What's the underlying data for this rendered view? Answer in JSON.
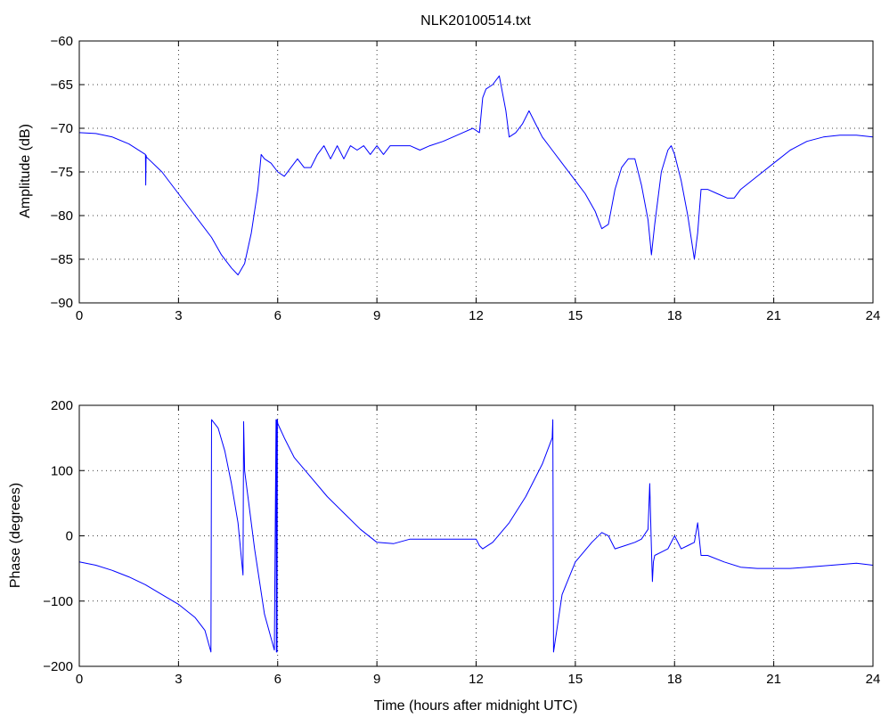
{
  "chart_data": [
    {
      "type": "line",
      "title": "NLK20100514.txt",
      "xlabel": "",
      "ylabel": "Amplitude (dB)",
      "xlim": [
        0,
        24
      ],
      "ylim": [
        -90,
        -60
      ],
      "xticks": [
        "0",
        "3",
        "6",
        "9",
        "12",
        "15",
        "18",
        "21",
        "24"
      ],
      "yticks": [
        "-90",
        "-85",
        "-80",
        "-75",
        "-70",
        "-65",
        "-60"
      ],
      "grid": true,
      "color": "#0000ff",
      "series": [
        {
          "x": [
            0,
            0.5,
            1.0,
            1.5,
            2.0,
            2.01,
            2.02,
            2.03,
            2.5,
            3.0,
            3.5,
            4.0,
            4.3,
            4.6,
            4.8,
            5.0,
            5.2,
            5.4,
            5.5,
            5.6,
            5.8,
            6.0,
            6.2,
            6.4,
            6.6,
            6.8,
            7.0,
            7.2,
            7.4,
            7.6,
            7.8,
            8.0,
            8.2,
            8.4,
            8.6,
            8.8,
            9.0,
            9.2,
            9.4,
            9.6,
            9.8,
            10.0,
            10.3,
            10.6,
            11.0,
            11.3,
            11.6,
            11.9,
            12.1,
            12.2,
            12.3,
            12.5,
            12.7,
            12.8,
            12.9,
            13.0,
            13.2,
            13.4,
            13.6,
            13.8,
            14.0,
            14.3,
            14.6,
            15.0,
            15.3,
            15.6,
            15.8,
            16.0,
            16.2,
            16.4,
            16.6,
            16.8,
            17.0,
            17.2,
            17.3,
            17.4,
            17.6,
            17.8,
            17.9,
            18.0,
            18.2,
            18.4,
            18.6,
            18.7,
            18.8,
            19.0,
            19.3,
            19.6,
            19.8,
            20.0,
            20.5,
            21.0,
            21.5,
            22.0,
            22.5,
            23.0,
            23.5,
            24.0
          ],
          "values": [
            -70.5,
            -70.6,
            -71.0,
            -71.8,
            -73.0,
            -76.5,
            -73.1,
            -73.3,
            -75.0,
            -77.5,
            -80.0,
            -82.5,
            -84.5,
            -86.0,
            -86.8,
            -85.5,
            -82.0,
            -77.0,
            -73.0,
            -73.5,
            -74.0,
            -75.0,
            -75.5,
            -74.5,
            -73.5,
            -74.5,
            -74.5,
            -73.0,
            -72.0,
            -73.5,
            -72.0,
            -73.5,
            -72.0,
            -72.5,
            -72.0,
            -73.0,
            -72.0,
            -73.0,
            -72.0,
            -72.0,
            -72.0,
            -72.0,
            -72.5,
            -72.0,
            -71.5,
            -71.0,
            -70.5,
            -70.0,
            -70.5,
            -66.5,
            -65.5,
            -65.0,
            -64.0,
            -66.0,
            -68.0,
            -71.0,
            -70.5,
            -69.5,
            -68.0,
            -69.5,
            -71.0,
            -72.5,
            -74.0,
            -76.0,
            -77.5,
            -79.5,
            -81.5,
            -81.0,
            -77.0,
            -74.5,
            -73.5,
            -73.5,
            -76.5,
            -80.5,
            -84.5,
            -81.0,
            -75.0,
            -72.5,
            -72.0,
            -73.0,
            -76.0,
            -80.0,
            -85.0,
            -82.0,
            -77.0,
            -77.0,
            -77.5,
            -78.0,
            -78.0,
            -77.0,
            -75.5,
            -74.0,
            -72.5,
            -71.5,
            -71.0,
            -70.8,
            -70.8,
            -71.0
          ]
        }
      ]
    },
    {
      "type": "line",
      "title": "",
      "xlabel": "Time (hours after midnight UTC)",
      "ylabel": "Phase (degrees)",
      "xlim": [
        0,
        24
      ],
      "ylim": [
        -200,
        200
      ],
      "xticks": [
        "0",
        "3",
        "6",
        "9",
        "12",
        "15",
        "18",
        "21",
        "24"
      ],
      "yticks": [
        "-200",
        "-100",
        "0",
        "100",
        "200"
      ],
      "grid": true,
      "color": "#0000ff",
      "series": [
        {
          "x": [
            0,
            0.5,
            1.0,
            1.5,
            2.0,
            2.5,
            3.0,
            3.5,
            3.8,
            3.98,
            4.0,
            4.2,
            4.4,
            4.6,
            4.8,
            4.95,
            4.97,
            5.0,
            5.3,
            5.6,
            5.9,
            5.95,
            5.96,
            5.97,
            5.98,
            5.99,
            6.0,
            6.2,
            6.5,
            7.0,
            7.5,
            8.0,
            8.5,
            9.0,
            9.5,
            10.0,
            10.5,
            11.0,
            11.5,
            12.0,
            12.1,
            12.2,
            12.5,
            13.0,
            13.5,
            14.0,
            14.3,
            14.32,
            14.34,
            14.6,
            15.0,
            15.5,
            15.8,
            16.0,
            16.2,
            16.5,
            16.8,
            17.0,
            17.2,
            17.25,
            17.3,
            17.33,
            17.36,
            17.4,
            17.6,
            17.8,
            18.0,
            18.2,
            18.4,
            18.6,
            18.7,
            18.8,
            19.0,
            19.5,
            20.0,
            20.5,
            21.0,
            21.5,
            22.0,
            22.5,
            23.0,
            23.5,
            24.0
          ],
          "values": [
            -40,
            -45,
            -53,
            -63,
            -75,
            -90,
            -105,
            -125,
            -145,
            -178,
            178,
            165,
            130,
            80,
            20,
            -60,
            175,
            100,
            -20,
            -120,
            -175,
            178,
            -178,
            178,
            -178,
            178,
            172,
            150,
            120,
            90,
            60,
            35,
            10,
            -10,
            -12,
            -5,
            -5,
            -5,
            -5,
            -5,
            -15,
            -20,
            -10,
            20,
            60,
            110,
            150,
            178,
            -178,
            -90,
            -40,
            -10,
            5,
            0,
            -20,
            -15,
            -10,
            -5,
            10,
            80,
            -20,
            -70,
            -40,
            -30,
            -25,
            -20,
            0,
            -20,
            -15,
            -10,
            20,
            -30,
            -30,
            -40,
            -48,
            -50,
            -50,
            -50,
            -48,
            -46,
            -44,
            -42,
            -45
          ]
        }
      ]
    }
  ]
}
